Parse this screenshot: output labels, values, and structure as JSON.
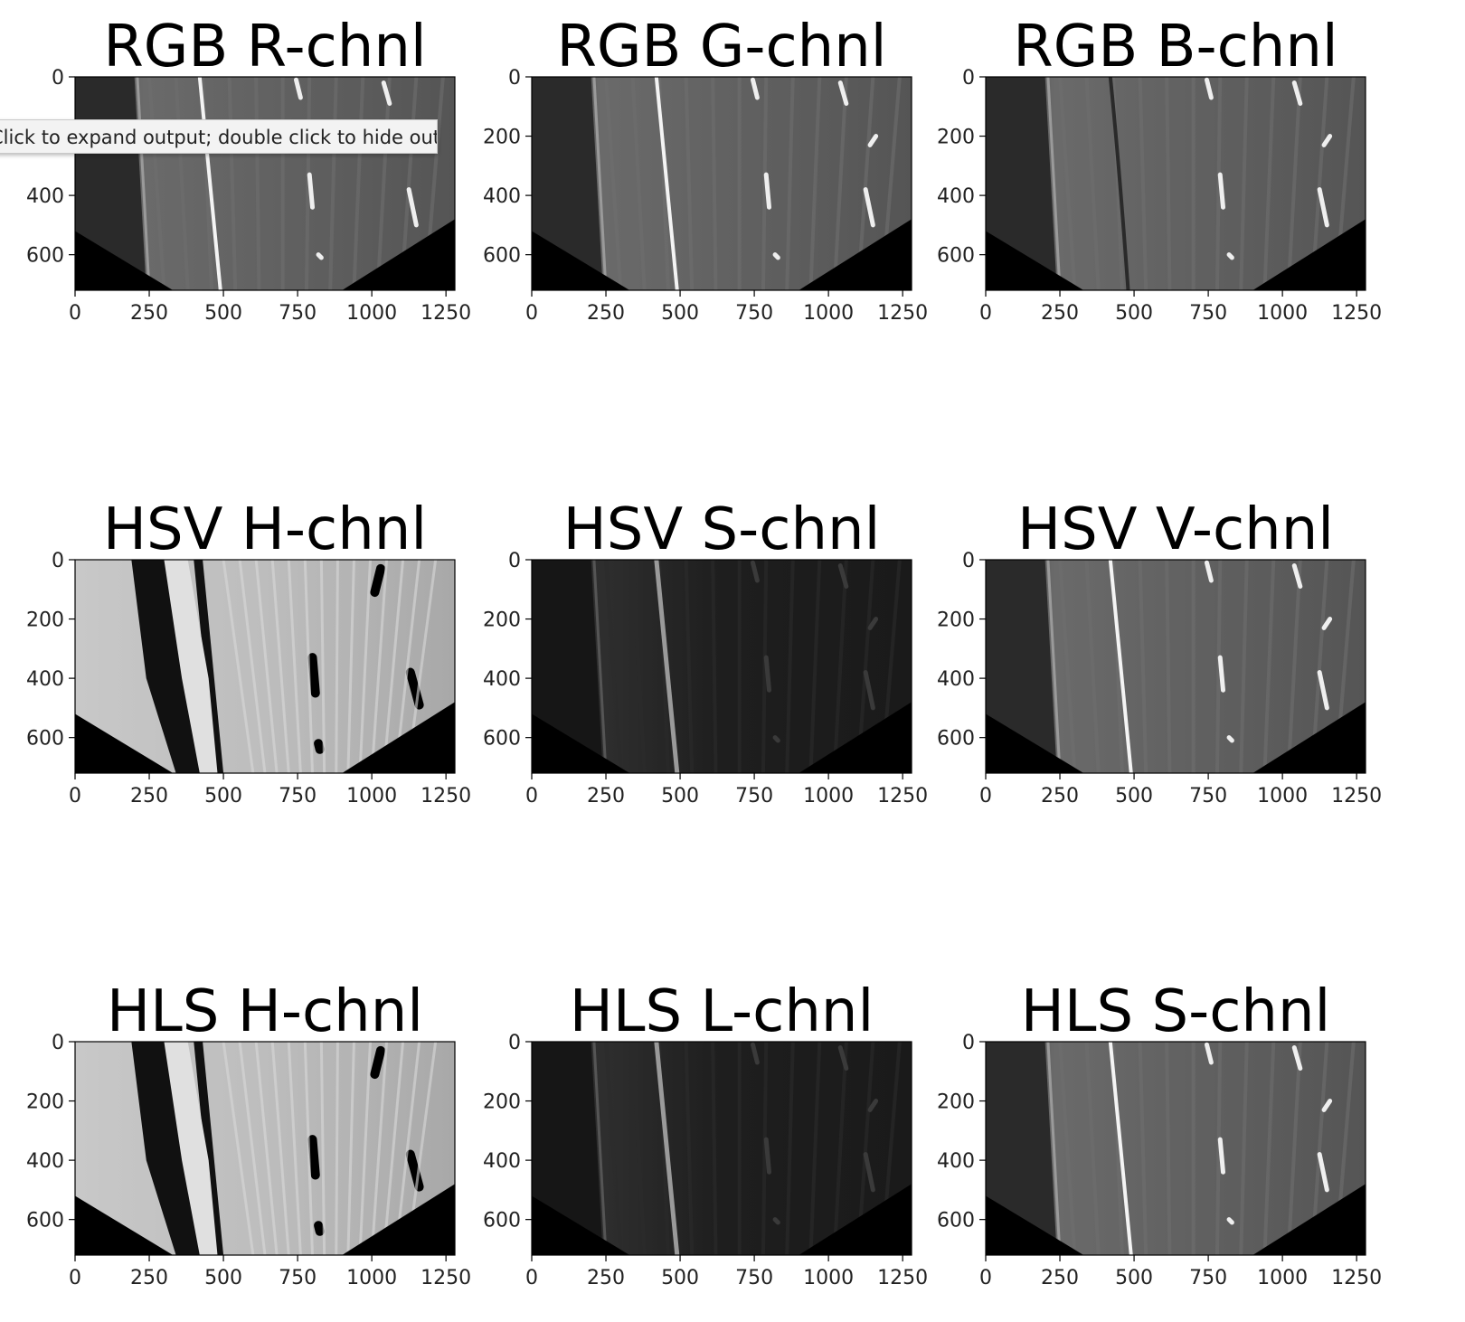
{
  "tooltip": {
    "text": "Click to expand output; double click to hide output"
  },
  "chart_data": [
    {
      "type": "image",
      "title": "RGB R-chnl",
      "xlim": [
        0,
        1280
      ],
      "ylim": [
        720,
        0
      ],
      "xticks": [
        0,
        250,
        500,
        750,
        1000,
        1250
      ],
      "yticks": [
        0,
        200,
        400,
        600
      ],
      "style": "rgb-r"
    },
    {
      "type": "image",
      "title": "RGB G-chnl",
      "xlim": [
        0,
        1280
      ],
      "ylim": [
        720,
        0
      ],
      "xticks": [
        0,
        250,
        500,
        750,
        1000,
        1250
      ],
      "yticks": [
        0,
        200,
        400,
        600
      ],
      "style": "rgb-g"
    },
    {
      "type": "image",
      "title": "RGB B-chnl",
      "xlim": [
        0,
        1280
      ],
      "ylim": [
        720,
        0
      ],
      "xticks": [
        0,
        250,
        500,
        750,
        1000,
        1250
      ],
      "yticks": [
        0,
        200,
        400,
        600
      ],
      "style": "rgb-b"
    },
    {
      "type": "image",
      "title": "HSV H-chnl",
      "xlim": [
        0,
        1280
      ],
      "ylim": [
        720,
        0
      ],
      "xticks": [
        0,
        250,
        500,
        750,
        1000,
        1250
      ],
      "yticks": [
        0,
        200,
        400,
        600
      ],
      "style": "hue"
    },
    {
      "type": "image",
      "title": "HSV S-chnl",
      "xlim": [
        0,
        1280
      ],
      "ylim": [
        720,
        0
      ],
      "xticks": [
        0,
        250,
        500,
        750,
        1000,
        1250
      ],
      "yticks": [
        0,
        200,
        400,
        600
      ],
      "style": "dark"
    },
    {
      "type": "image",
      "title": "HSV V-chnl",
      "xlim": [
        0,
        1280
      ],
      "ylim": [
        720,
        0
      ],
      "xticks": [
        0,
        250,
        500,
        750,
        1000,
        1250
      ],
      "yticks": [
        0,
        200,
        400,
        600
      ],
      "style": "gray"
    },
    {
      "type": "image",
      "title": "HLS H-chnl",
      "xlim": [
        0,
        1280
      ],
      "ylim": [
        720,
        0
      ],
      "xticks": [
        0,
        250,
        500,
        750,
        1000,
        1250
      ],
      "yticks": [
        0,
        200,
        400,
        600
      ],
      "style": "hue"
    },
    {
      "type": "image",
      "title": "HLS L-chnl",
      "xlim": [
        0,
        1280
      ],
      "ylim": [
        720,
        0
      ],
      "xticks": [
        0,
        250,
        500,
        750,
        1000,
        1250
      ],
      "yticks": [
        0,
        200,
        400,
        600
      ],
      "style": "dark"
    },
    {
      "type": "image",
      "title": "HLS S-chnl",
      "xlim": [
        0,
        1280
      ],
      "ylim": [
        720,
        0
      ],
      "xticks": [
        0,
        250,
        500,
        750,
        1000,
        1250
      ],
      "yticks": [
        0,
        200,
        400,
        600
      ],
      "style": "gray"
    }
  ]
}
